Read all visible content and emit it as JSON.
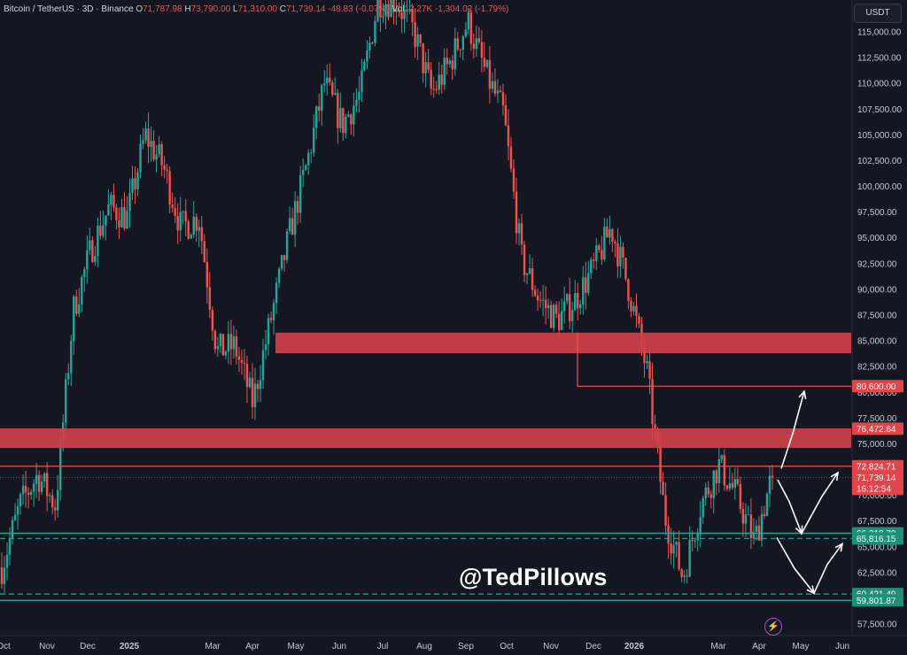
{
  "header": {
    "symbol": "Bitcoin / TetherUS · 3D · Binance",
    "o_label": "O",
    "o": "71,787.98",
    "h_label": "H",
    "h": "73,790.00",
    "l_label": "L",
    "l": "71,310.00",
    "c_label": "C",
    "c": "71,739.14",
    "chg": "-48.83 (-0.07%)",
    "vol_label": "Vol",
    "vol": "12.27K",
    "vol_chg": "-1,304.02 (-1.79%)"
  },
  "currency_button": "USDT",
  "watermark": "@TedPillows",
  "colors": {
    "background": "#141722",
    "up": "#26a69a",
    "down": "#ef5350",
    "zone": "#d1404c",
    "support": "#26a69a",
    "resistance": "#ef5350",
    "arrow": "#ffffff"
  },
  "chart_data": {
    "type": "candlestick",
    "title": "Bitcoin / TetherUS · 3D · Binance",
    "ylim": [
      56000,
      118000
    ],
    "y_ticks": [
      "115,000.00",
      "112,500.00",
      "110,000.00",
      "107,500.00",
      "105,000.00",
      "102,500.00",
      "100,000.00",
      "97,500.00",
      "95,000.00",
      "92,500.00",
      "90,000.00",
      "87,500.00",
      "85,000.00",
      "82,500.00",
      "80,000.00",
      "77,500.00",
      "75,000.00",
      "72,500.00",
      "70,000.00",
      "67,500.00",
      "65,000.00",
      "62,500.00",
      "60,000.00",
      "57,500.00"
    ],
    "x_ticks": [
      "Oct",
      "Nov",
      "Dec",
      "2025",
      "Mar",
      "Apr",
      "May",
      "Jun",
      "Jul",
      "Aug",
      "Sep",
      "Oct",
      "Nov",
      "Dec",
      "2026",
      "Mar",
      "Apr",
      "May",
      "Jun"
    ],
    "price_path": [
      63000,
      69000,
      72000,
      69000,
      88000,
      94000,
      98000,
      97000,
      105000,
      102000,
      96000,
      97000,
      84000,
      84500,
      79000,
      87000,
      95000,
      102000,
      110000,
      106000,
      109000,
      118000,
      118000,
      115000,
      109000,
      112000,
      116000,
      111000,
      107000,
      93000,
      89000,
      87000,
      89000,
      92000,
      96000,
      90000,
      82000,
      68000,
      62000,
      69000,
      73000,
      70000,
      65500,
      72000
    ],
    "zones": [
      {
        "from": 83800,
        "to": 85800
      },
      {
        "from": 74600,
        "to": 76500
      }
    ],
    "levels": [
      {
        "price": 80600,
        "label": "80,600.00",
        "color": "resistance"
      },
      {
        "price": 76472.64,
        "label": "76,472.64",
        "color": "resistance"
      },
      {
        "price": 72824.71,
        "label": "72,824.71",
        "color": "resistance"
      },
      {
        "price": 66318.7,
        "label": "66,318.70",
        "color": "support"
      },
      {
        "price": 65816.15,
        "label": "65,816.15",
        "color": "support",
        "dashed": true
      },
      {
        "price": 60421.49,
        "label": "60,421.49",
        "color": "support",
        "dashed": true
      },
      {
        "price": 59801.87,
        "label": "59,801.87",
        "color": "support"
      }
    ],
    "current_price": {
      "price": 71739.14,
      "label": "71,739.14",
      "countdown": "16:12:54"
    },
    "scenarios": [
      {
        "name": "bullish-breakout",
        "points": [
          [
            0,
            72600
          ],
          [
            1,
            76000
          ],
          [
            2,
            80100
          ]
        ]
      },
      {
        "name": "range",
        "points": [
          [
            0,
            71500
          ],
          [
            1,
            69400
          ],
          [
            2,
            66300
          ],
          [
            3,
            69900
          ],
          [
            4,
            72200
          ]
        ]
      },
      {
        "name": "bearish",
        "points": [
          [
            0,
            65900
          ],
          [
            1,
            62900
          ],
          [
            2,
            60500
          ],
          [
            3,
            63300
          ],
          [
            4,
            65300
          ]
        ]
      }
    ]
  }
}
